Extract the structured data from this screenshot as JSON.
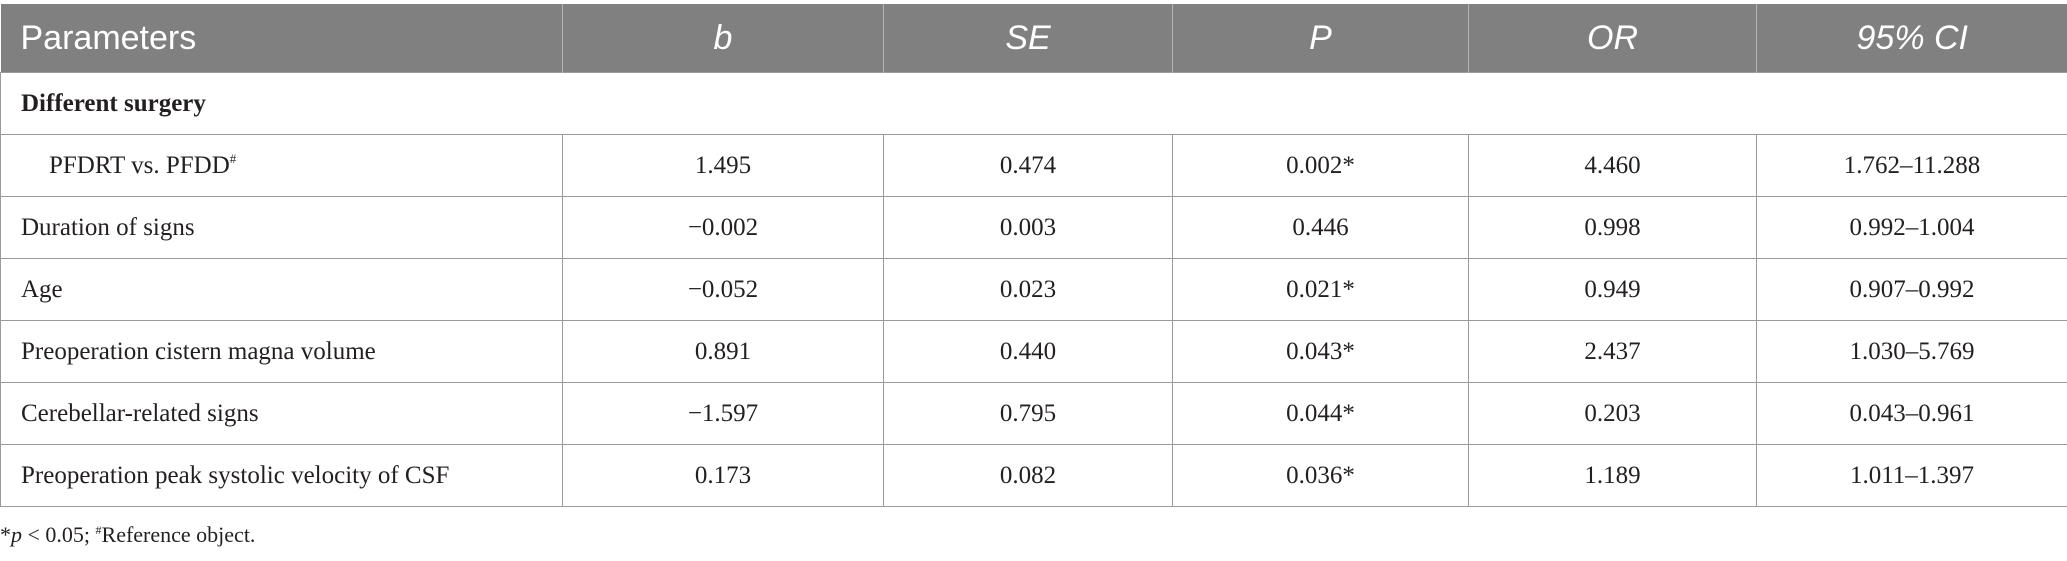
{
  "table": {
    "headers": [
      "Parameters",
      "b",
      "SE",
      "P",
      "OR",
      "95% CI"
    ],
    "section_label": "Different surgery",
    "rows": [
      {
        "label": "PFDRT vs. PFDD",
        "label_sup": "#",
        "b": "1.495",
        "se": "0.474",
        "p": "0.002*",
        "or": "4.460",
        "ci": "1.762–11.288"
      },
      {
        "label": "Duration of signs",
        "b": "−0.002",
        "se": "0.003",
        "p": "0.446",
        "or": "0.998",
        "ci": "0.992–1.004"
      },
      {
        "label": "Age",
        "b": "−0.052",
        "se": "0.023",
        "p": "0.021*",
        "or": "0.949",
        "ci": "0.907–0.992"
      },
      {
        "label": "Preoperation cistern magna volume",
        "b": "0.891",
        "se": "0.440",
        "p": "0.043*",
        "or": "2.437",
        "ci": "1.030–5.769"
      },
      {
        "label": "Cerebellar-related signs",
        "b": "−1.597",
        "se": "0.795",
        "p": "0.044*",
        "or": "0.203",
        "ci": "0.043–0.961"
      },
      {
        "label": "Preoperation peak systolic velocity of CSF",
        "b": "0.173",
        "se": "0.082",
        "p": "0.036*",
        "or": "1.189",
        "ci": "1.011–1.397"
      }
    ]
  },
  "footnote": {
    "star": "*",
    "p_symbol": "p",
    "threshold": " < 0.05; ",
    "hash": "#",
    "reference_text": "Reference object."
  },
  "colors": {
    "header_bg": "#808080",
    "header_text": "#ffffff",
    "border": "#9a9a9a",
    "text": "#231f20"
  }
}
